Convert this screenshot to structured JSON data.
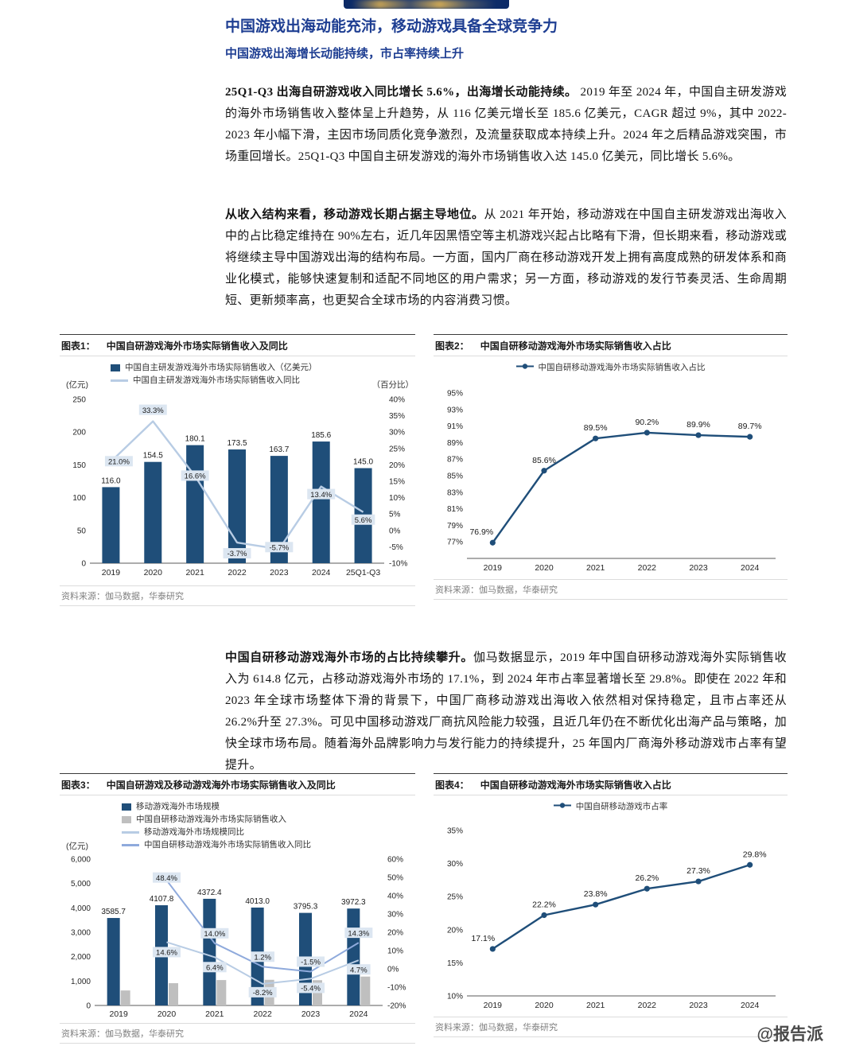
{
  "page": {
    "title": "中国游戏出海动能充沛，移动游戏具备全球竞争力",
    "subtitle": "中国游戏出海增长动能持续，市占率持续上升",
    "watermark": "@报告派"
  },
  "paragraphs": [
    {
      "lead": "25Q1-Q3 出海自研游戏收入同比增长 5.6%，出海增长动能持续。",
      "body": " 2019 年至 2024 年，中国自主研发游戏的海外市场销售收入整体呈上升趋势，从 116 亿美元增长至 185.6 亿美元，CAGR 超过 9%，其中 2022-2023 年小幅下滑，主因市场同质化竞争激烈，及流量获取成本持续上升。2024 年之后精品游戏突围，市场重回增长。25Q1-Q3 中国自主研发游戏的海外市场销售收入达 145.0 亿美元，同比增长 5.6%。"
    },
    {
      "lead": "从收入结构来看，移动游戏长期占据主导地位。",
      "body": "从 2021 年开始，移动游戏在中国自主研发游戏出海收入中的占比稳定维持在 90%左右，近几年因黑悟空等主机游戏兴起占比略有下滑，但长期来看，移动游戏或将继续主导中国游戏出海的结构布局。一方面，国内厂商在移动游戏开发上拥有高度成熟的研发体系和商业化模式，能够快速复制和适配不同地区的用户需求；另一方面，移动游戏的发行节奏灵活、生命周期短、更新频率高，也更契合全球市场的内容消费习惯。"
    },
    {
      "lead": "中国自研移动游戏海外市场的占比持续攀升。",
      "body": "伽马数据显示，2019 年中国自研移动游戏海外实际销售收入为 614.8 亿元，占移动游戏海外市场的 17.1%，到 2024 年市占率显著增长至 29.8%。即使在 2022 年和 2023 年全球市场整体下滑的背景下，中国厂商移动游戏出海收入依然相对保持稳定，且市占率还从 26.2%升至 27.3%。可见中国移动游戏厂商抗风险能力较强，且近几年仍在不断优化出海产品与策略，加快全球市场布局。随着海外品牌影响力与发行能力的持续提升，25 年国内厂商海外移动游戏市占率有望提升。"
    }
  ],
  "chart_data": [
    {
      "type": "combo-bar-line",
      "figure_label": "图表1：",
      "title": "中国自研游戏海外市场实际销售收入及同比",
      "unit_left": "(亿元)",
      "unit_right": "（百分比）",
      "categories": [
        "2019",
        "2020",
        "2021",
        "2022",
        "2023",
        "2024",
        "25Q1-Q3"
      ],
      "bar_series": [
        {
          "name": "中国自主研发游戏海外市场实际销售收入（亿美元）",
          "color": "#1F4E79",
          "axis": "left",
          "values": [
            116.0,
            154.5,
            180.1,
            173.5,
            163.7,
            185.6,
            145.0
          ],
          "labels": [
            "116.0",
            "154.5",
            "180.1",
            "173.5",
            "163.7",
            "185.6",
            "145.0"
          ]
        }
      ],
      "line_series": [
        {
          "name": "中国自主研发游戏海外市场实际销售收入同比",
          "color": "#B8CCE4",
          "axis": "right",
          "boxed_labels": true,
          "values": [
            21.0,
            33.3,
            16.6,
            -3.7,
            -5.7,
            13.4,
            5.6
          ],
          "labels": [
            "21.0%",
            "33.3%",
            "16.6%",
            "-3.7%",
            "-5.7%",
            "13.4%",
            "5.6%"
          ]
        }
      ],
      "left_axis": {
        "min": 0,
        "max": 250,
        "tick_values": [
          0,
          50,
          100,
          150,
          200,
          250
        ],
        "tick_labels": [
          "0",
          "50",
          "100",
          "150",
          "200",
          "250"
        ]
      },
      "right_axis": {
        "min": -10,
        "max": 40,
        "tick_values": [
          -10,
          -5,
          0,
          5,
          10,
          15,
          20,
          25,
          30,
          35,
          40
        ],
        "tick_labels": [
          "-10%",
          "-5%",
          "0%",
          "5%",
          "10%",
          "15%",
          "20%",
          "25%",
          "30%",
          "35%",
          "40%"
        ]
      },
      "grid": false,
      "source": "资料来源：伽马数据，华泰研究"
    },
    {
      "type": "line",
      "figure_label": "图表2：",
      "title": "中国自研移动游戏海外市场实际销售收入占比",
      "categories": [
        "2019",
        "2020",
        "2021",
        "2022",
        "2023",
        "2024"
      ],
      "line_series": [
        {
          "name": "中国自研移动游戏海外市场实际销售收入占比",
          "color": "#1F4E79",
          "axis": "left",
          "markers": true,
          "values": [
            76.9,
            85.6,
            89.5,
            90.2,
            89.9,
            89.7
          ],
          "labels": [
            "76.9%",
            "85.6%",
            "89.5%",
            "90.2%",
            "89.9%",
            "89.7%"
          ]
        }
      ],
      "left_axis": {
        "min": 75,
        "max": 95,
        "tick_values": [
          77,
          79,
          81,
          83,
          85,
          87,
          89,
          91,
          93,
          95
        ],
        "tick_labels": [
          "77%",
          "79%",
          "81%",
          "83%",
          "85%",
          "87%",
          "89%",
          "91%",
          "93%",
          "95%"
        ]
      },
      "grid": false,
      "source": "资料来源：伽马数据，华泰研究"
    },
    {
      "type": "combo-bar-line",
      "figure_label": "图表3：",
      "title": "中国自研游戏及移动游戏海外市场实际销售收入及同比",
      "unit_left": "(亿元)",
      "categories": [
        "2019",
        "2020",
        "2021",
        "2022",
        "2023",
        "2024"
      ],
      "bar_series": [
        {
          "name": "移动游戏海外市场规模",
          "color": "#1F4E79",
          "axis": "left",
          "values": [
            3585.7,
            4107.8,
            4372.4,
            4013.0,
            3795.3,
            3972.3
          ],
          "labels": [
            "3585.7",
            "4107.8",
            "4372.4",
            "4013.0",
            "3795.3",
            "3972.3"
          ]
        },
        {
          "name": "中国自研移动游戏海外市场实际销售收入",
          "color": "#BFBFBF",
          "axis": "left",
          "values": [
            614.8,
            912,
            1041,
            1051,
            1036,
            1184
          ],
          "labels": null
        }
      ],
      "line_series": [
        {
          "name": "移动游戏海外市场规模同比",
          "color": "#B8CCE4",
          "axis": "right",
          "boxed_labels": true,
          "values": [
            null,
            14.6,
            6.4,
            -8.2,
            -5.4,
            4.7
          ],
          "labels": [
            null,
            "14.6%",
            "6.4%",
            "-8.2%",
            "-5.4%",
            "4.7%"
          ]
        },
        {
          "name": "中国自研移动游戏海外市场实际销售收入同比",
          "color": "#8FAADC",
          "axis": "right",
          "boxed_labels": true,
          "values": [
            null,
            48.4,
            14.0,
            1.2,
            -1.5,
            14.3
          ],
          "labels": [
            null,
            "48.4%",
            "14.0%",
            "1.2%",
            "-1.5%",
            "14.3%"
          ]
        }
      ],
      "left_axis": {
        "min": 0,
        "max": 6000,
        "tick_values": [
          0,
          1000,
          2000,
          3000,
          4000,
          5000,
          6000
        ],
        "tick_labels": [
          "0",
          "1,000",
          "2,000",
          "3,000",
          "4,000",
          "5,000",
          "6,000"
        ]
      },
      "right_axis": {
        "min": -20,
        "max": 60,
        "tick_values": [
          -20,
          -10,
          0,
          10,
          20,
          30,
          40,
          50,
          60
        ],
        "tick_labels": [
          "-20%",
          "-10%",
          "0%",
          "10%",
          "20%",
          "30%",
          "40%",
          "50%",
          "60%"
        ]
      },
      "grid": false,
      "source": "资料来源：伽马数据，华泰研究"
    },
    {
      "type": "line",
      "figure_label": "图表4：",
      "title": "中国自研移动游戏海外市场实际销售收入占比",
      "categories": [
        "2019",
        "2020",
        "2021",
        "2022",
        "2023",
        "2024"
      ],
      "line_series": [
        {
          "name": "中国自研移动游戏市占率",
          "color": "#1F4E79",
          "axis": "left",
          "markers": true,
          "values": [
            17.1,
            22.2,
            23.8,
            26.2,
            27.3,
            29.8
          ],
          "labels": [
            "17.1%",
            "22.2%",
            "23.8%",
            "26.2%",
            "27.3%",
            "29.8%"
          ]
        }
      ],
      "left_axis": {
        "min": 10,
        "max": 35,
        "tick_values": [
          10,
          15,
          20,
          25,
          30,
          35
        ],
        "tick_labels": [
          "10%",
          "15%",
          "20%",
          "25%",
          "30%",
          "35%"
        ]
      },
      "grid": false,
      "source": "资料来源：伽马数据，华泰研究"
    }
  ],
  "colors": {
    "heading_blue": "#1e3e92",
    "bar_navy": "#1F4E79",
    "line_light_blue": "#B8CCE4",
    "line_medium_blue": "#8FAADC",
    "bar_gray": "#BFBFBF",
    "label_box_fill": "#DCE6F1"
  }
}
